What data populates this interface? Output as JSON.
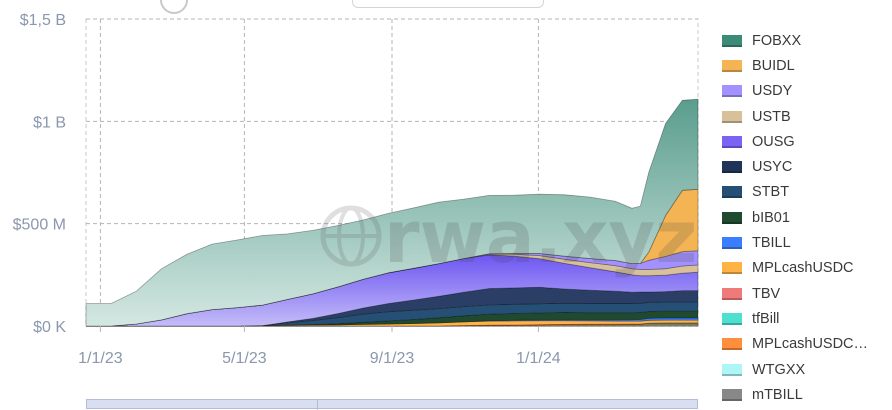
{
  "chart_data": {
    "type": "area",
    "stacked": true,
    "title": "",
    "xlabel": "",
    "ylabel": "",
    "ylim": [
      0,
      1500000000
    ],
    "yticks": [
      {
        "value": 0,
        "label": "$0 K"
      },
      {
        "value": 500000000,
        "label": "$500 M"
      },
      {
        "value": 1000000000,
        "label": "$1 B"
      },
      {
        "value": 1500000000,
        "label": "$1,5 B"
      }
    ],
    "xticks": [
      {
        "date": "2023-01-01",
        "label": "1/1/23"
      },
      {
        "date": "2023-05-01",
        "label": "5/1/23"
      },
      {
        "date": "2023-09-01",
        "label": "9/1/23"
      },
      {
        "date": "2024-01-01",
        "label": "1/1/24"
      }
    ],
    "xlim": [
      "2022-12-20",
      "2024-05-13"
    ],
    "grid": true,
    "legend_position": "right",
    "watermark": "rwa.xyz",
    "x": [
      "2022-12-20",
      "2023-01-10",
      "2023-01-31",
      "2023-02-21",
      "2023-03-14",
      "2023-04-04",
      "2023-04-25",
      "2023-05-16",
      "2023-06-06",
      "2023-06-27",
      "2023-07-18",
      "2023-08-08",
      "2023-08-29",
      "2023-09-19",
      "2023-10-10",
      "2023-10-31",
      "2023-11-21",
      "2023-12-12",
      "2024-01-02",
      "2024-01-23",
      "2024-02-13",
      "2024-03-05",
      "2024-03-19",
      "2024-03-26",
      "2024-04-02",
      "2024-04-16",
      "2024-04-30",
      "2024-05-13"
    ],
    "series": [
      {
        "name": "mTBILL",
        "color": "#888888",
        "values": [
          0,
          0,
          0,
          0,
          0,
          0,
          0,
          0,
          0,
          0,
          0,
          0,
          0,
          0,
          0,
          0,
          0,
          0,
          0,
          0,
          0,
          0,
          0,
          0,
          0,
          0,
          0,
          0
        ]
      },
      {
        "name": "WTGXX",
        "color": "#aef5f5",
        "values": [
          0,
          0,
          0,
          0,
          0,
          0,
          0,
          0,
          0,
          0,
          0,
          0,
          0,
          0,
          0,
          0,
          0,
          0,
          0,
          0,
          0,
          0,
          0,
          0,
          1000000,
          1000000,
          1000000,
          1000000
        ]
      },
      {
        "name": "MPLcashUSDC…",
        "color": "#ff8f3d",
        "values": [
          0,
          0,
          0,
          0,
          0,
          0,
          0,
          0,
          0,
          0,
          0,
          0,
          0,
          0,
          0,
          2000000,
          4000000,
          5000000,
          6000000,
          6000000,
          6000000,
          6000000,
          6000000,
          6000000,
          6000000,
          6000000,
          6000000,
          6000000
        ]
      },
      {
        "name": "tfBill",
        "color": "#4de0d0",
        "values": [
          0,
          0,
          0,
          0,
          0,
          0,
          0,
          0,
          0,
          0,
          0,
          0,
          0,
          0,
          0,
          0,
          0,
          0,
          0,
          2000000,
          3000000,
          3000000,
          4000000,
          4000000,
          5000000,
          5000000,
          5000000,
          5000000
        ]
      },
      {
        "name": "TBV",
        "color": "#f07a7a",
        "values": [
          0,
          0,
          0,
          0,
          0,
          0,
          0,
          0,
          0,
          0,
          0,
          0,
          0,
          0,
          0,
          0,
          0,
          0,
          0,
          0,
          0,
          0,
          0,
          0,
          2000000,
          3000000,
          3000000,
          3000000
        ]
      },
      {
        "name": "MPLcashUSDC",
        "color": "#ffb347",
        "values": [
          0,
          0,
          0,
          0,
          0,
          0,
          0,
          2000000,
          4000000,
          5000000,
          6000000,
          8000000,
          10000000,
          12000000,
          15000000,
          18000000,
          20000000,
          20000000,
          20000000,
          18000000,
          16000000,
          15000000,
          14000000,
          14000000,
          14000000,
          14000000,
          14000000,
          14000000
        ]
      },
      {
        "name": "TBILL",
        "color": "#3b7dff",
        "values": [
          0,
          0,
          0,
          0,
          0,
          0,
          0,
          0,
          0,
          0,
          0,
          0,
          0,
          0,
          0,
          0,
          2000000,
          3000000,
          4000000,
          5000000,
          5000000,
          6000000,
          7000000,
          8000000,
          9000000,
          10000000,
          10000000,
          10000000
        ]
      },
      {
        "name": "bIB01",
        "color": "#1f4a30",
        "values": [
          0,
          0,
          0,
          0,
          0,
          0,
          0,
          0,
          1000000,
          2000000,
          5000000,
          10000000,
          15000000,
          20000000,
          25000000,
          30000000,
          32000000,
          33000000,
          34000000,
          35000000,
          35000000,
          35000000,
          34000000,
          34000000,
          34000000,
          34000000,
          34000000,
          34000000
        ]
      },
      {
        "name": "STBT",
        "color": "#264f75",
        "values": [
          0,
          0,
          0,
          0,
          0,
          0,
          0,
          0,
          10000000,
          20000000,
          30000000,
          40000000,
          45000000,
          45000000,
          45000000,
          45000000,
          45000000,
          45000000,
          45000000,
          45000000,
          45000000,
          45000000,
          45000000,
          45000000,
          45000000,
          45000000,
          45000000,
          45000000
        ]
      },
      {
        "name": "USYC",
        "color": "#2b3f66",
        "values": [
          0,
          0,
          0,
          0,
          0,
          0,
          0,
          0,
          5000000,
          10000000,
          20000000,
          30000000,
          40000000,
          50000000,
          60000000,
          70000000,
          80000000,
          80000000,
          80000000,
          70000000,
          65000000,
          60000000,
          55000000,
          55000000,
          50000000,
          50000000,
          55000000,
          55000000
        ]
      },
      {
        "name": "OUSG",
        "color": "#7a63f5",
        "values": [
          0,
          0,
          10000000,
          30000000,
          60000000,
          80000000,
          90000000,
          100000000,
          110000000,
          120000000,
          130000000,
          140000000,
          150000000,
          155000000,
          160000000,
          165000000,
          165000000,
          155000000,
          140000000,
          125000000,
          110000000,
          95000000,
          85000000,
          80000000,
          80000000,
          80000000,
          85000000,
          90000000
        ]
      },
      {
        "name": "USTB",
        "color": "#d7c09a",
        "values": [
          0,
          0,
          0,
          0,
          0,
          0,
          0,
          0,
          0,
          0,
          0,
          0,
          0,
          0,
          0,
          0,
          5000000,
          10000000,
          15000000,
          20000000,
          25000000,
          30000000,
          30000000,
          30000000,
          30000000,
          32000000,
          35000000,
          35000000
        ]
      },
      {
        "name": "USDY",
        "color": "#a391ff",
        "values": [
          0,
          0,
          0,
          0,
          0,
          0,
          0,
          0,
          0,
          0,
          0,
          0,
          0,
          0,
          0,
          0,
          0,
          3000000,
          10000000,
          15000000,
          20000000,
          25000000,
          25000000,
          30000000,
          45000000,
          60000000,
          70000000,
          70000000
        ]
      },
      {
        "name": "BUIDL",
        "color": "#f4b454",
        "values": [
          0,
          0,
          0,
          0,
          0,
          0,
          0,
          0,
          0,
          0,
          0,
          0,
          0,
          0,
          0,
          0,
          0,
          0,
          0,
          0,
          0,
          0,
          0,
          0,
          40000000,
          200000000,
          300000000,
          300000000
        ]
      },
      {
        "name": "FOBXX",
        "color": "#6aa89a",
        "values": [
          110000000,
          110000000,
          160000000,
          250000000,
          290000000,
          320000000,
          330000000,
          340000000,
          320000000,
          310000000,
          300000000,
          290000000,
          290000000,
          295000000,
          300000000,
          290000000,
          285000000,
          285000000,
          290000000,
          300000000,
          300000000,
          290000000,
          270000000,
          280000000,
          390000000,
          450000000,
          440000000,
          440000000
        ]
      }
    ]
  },
  "legend": {
    "items": [
      {
        "label": "FOBXX",
        "color": "#3c8a78"
      },
      {
        "label": "BUIDL",
        "color": "#f4b454"
      },
      {
        "label": "USDY",
        "color": "#a391ff"
      },
      {
        "label": "USTB",
        "color": "#d7c09a"
      },
      {
        "label": "OUSG",
        "color": "#7a63f5"
      },
      {
        "label": "USYC",
        "color": "#1f3457"
      },
      {
        "label": "STBT",
        "color": "#264f75"
      },
      {
        "label": "bIB01",
        "color": "#1f4a30"
      },
      {
        "label": "TBILL",
        "color": "#3b7dff"
      },
      {
        "label": "MPLcashUSDC",
        "color": "#ffb347"
      },
      {
        "label": "TBV",
        "color": "#f07a7a"
      },
      {
        "label": "tfBill",
        "color": "#4de0d0"
      },
      {
        "label": "MPLcashUSDC…",
        "color": "#ff8f3d"
      },
      {
        "label": "WTGXX",
        "color": "#aef5f5"
      },
      {
        "label": "mTBILL",
        "color": "#888888"
      }
    ]
  }
}
